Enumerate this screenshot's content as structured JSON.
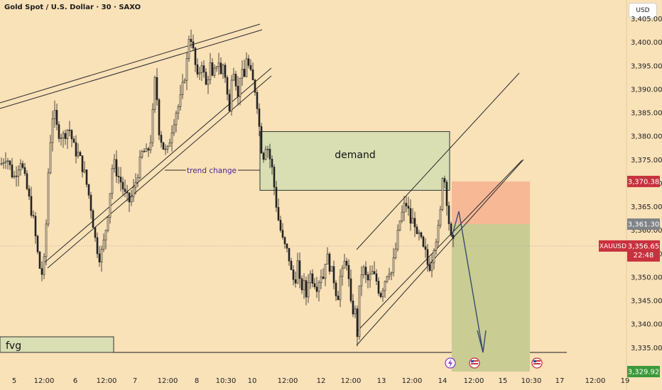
{
  "header": {
    "title": "Gold Spot / U.S. Dollar · 30 · SAXO",
    "currency": "USD"
  },
  "colors": {
    "background": "#f9e1b8",
    "candle": "#222222",
    "demand_zone": "#d9dfb3",
    "stop_zone": "#f7b896",
    "target_zone": "#c9cc93",
    "price_tag": "#c8313e",
    "target_tag": "#3a9a3a",
    "mid_tag": "#7f8386"
  },
  "chart_data": {
    "type": "candlestick",
    "symbol": "XAUUSD",
    "y_axis": {
      "range": [
        3326,
        3409
      ],
      "ticks": [
        3335,
        3340,
        3345,
        3350,
        3355,
        3360,
        3365,
        3370,
        3375,
        3380,
        3385,
        3390,
        3395,
        3400,
        3405
      ],
      "tick_labels": [
        "3,335.00",
        "3,340.00",
        "3,345.00",
        "3,350.00",
        "3,355.00",
        "3,360.00",
        "3,365.00",
        "3,370.00",
        "3,375.00",
        "3,380.00",
        "3,385.00",
        "3,390.00",
        "3,395.00",
        "3,400.00",
        "3,405.00"
      ]
    },
    "x_axis": {
      "tick_labels": [
        "5",
        "12:00",
        "6",
        "12:00",
        "7",
        "12:00",
        "8",
        "10:30",
        "10",
        "12:00",
        "12",
        "12:00",
        "13",
        "12:00",
        "14",
        "12:00",
        "15",
        "10:30",
        "17",
        "12:00",
        "19"
      ]
    },
    "annotations": {
      "demand_label": "demand",
      "trend_label": "trend change",
      "fvg_label": "fvg",
      "demand_zone": [
        3368.5,
        3381
      ],
      "stop_zone": [
        3361.3,
        3370.38
      ],
      "target_zone": [
        3329.92,
        3361.3
      ]
    },
    "price_tags": {
      "stop": "3,370.38",
      "entry": "3,361.30",
      "symbol": "XAUUSD",
      "current": "3,356.65",
      "countdown": "22:48",
      "target": "3,329.92",
      "current_value": 3356.65
    },
    "anchors": [
      [
        0,
        3374
      ],
      [
        8,
        3376
      ],
      [
        18,
        3371
      ],
      [
        28,
        3375
      ],
      [
        38,
        3368
      ],
      [
        46,
        3362
      ],
      [
        52,
        3355
      ],
      [
        57,
        3350
      ],
      [
        62,
        3354
      ],
      [
        68,
        3376
      ],
      [
        74,
        3386
      ],
      [
        80,
        3381
      ],
      [
        88,
        3380
      ],
      [
        96,
        3382
      ],
      [
        104,
        3377
      ],
      [
        110,
        3376
      ],
      [
        118,
        3372
      ],
      [
        126,
        3366
      ],
      [
        134,
        3357
      ],
      [
        140,
        3354
      ],
      [
        146,
        3358
      ],
      [
        152,
        3365
      ],
      [
        158,
        3375
      ],
      [
        164,
        3372
      ],
      [
        170,
        3370
      ],
      [
        176,
        3367
      ],
      [
        182,
        3366
      ],
      [
        188,
        3369
      ],
      [
        194,
        3373
      ],
      [
        200,
        3377
      ],
      [
        206,
        3376
      ],
      [
        212,
        3380
      ],
      [
        218,
        3394
      ],
      [
        222,
        3382
      ],
      [
        228,
        3378
      ],
      [
        234,
        3376
      ],
      [
        240,
        3381
      ],
      [
        246,
        3385
      ],
      [
        252,
        3387
      ],
      [
        258,
        3392
      ],
      [
        262,
        3396
      ],
      [
        266,
        3403
      ],
      [
        270,
        3399
      ],
      [
        274,
        3395
      ],
      [
        278,
        3391
      ],
      [
        282,
        3397
      ],
      [
        286,
        3393
      ],
      [
        290,
        3390
      ],
      [
        294,
        3396
      ],
      [
        298,
        3392
      ],
      [
        302,
        3394
      ],
      [
        306,
        3397
      ],
      [
        310,
        3393
      ],
      [
        314,
        3396
      ],
      [
        318,
        3390
      ],
      [
        322,
        3385
      ],
      [
        326,
        3396
      ],
      [
        330,
        3393
      ],
      [
        334,
        3388
      ],
      [
        338,
        3395
      ],
      [
        342,
        3391
      ],
      [
        346,
        3397
      ],
      [
        350,
        3394
      ],
      [
        354,
        3392
      ],
      [
        358,
        3390
      ],
      [
        362,
        3386
      ],
      [
        366,
        3378
      ],
      [
        370,
        3376
      ],
      [
        374,
        3379
      ],
      [
        378,
        3376
      ],
      [
        382,
        3373
      ],
      [
        386,
        3368
      ],
      [
        390,
        3363
      ],
      [
        394,
        3360
      ],
      [
        398,
        3357
      ],
      [
        402,
        3356
      ],
      [
        406,
        3354
      ],
      [
        410,
        3350
      ],
      [
        414,
        3349
      ],
      [
        418,
        3353
      ],
      [
        422,
        3347
      ],
      [
        426,
        3349
      ],
      [
        430,
        3346
      ],
      [
        434,
        3351
      ],
      [
        438,
        3350
      ],
      [
        442,
        3349
      ],
      [
        446,
        3348
      ],
      [
        450,
        3351
      ],
      [
        454,
        3350
      ],
      [
        458,
        3355
      ],
      [
        462,
        3353
      ],
      [
        466,
        3351
      ],
      [
        470,
        3349
      ],
      [
        474,
        3345
      ],
      [
        478,
        3350
      ],
      [
        482,
        3351
      ],
      [
        486,
        3355
      ],
      [
        490,
        3349
      ],
      [
        494,
        3342
      ],
      [
        498,
        3344
      ],
      [
        502,
        3338
      ],
      [
        506,
        3350
      ],
      [
        510,
        3352
      ],
      [
        514,
        3350
      ],
      [
        518,
        3349
      ],
      [
        522,
        3351
      ],
      [
        526,
        3350
      ],
      [
        530,
        3349
      ],
      [
        534,
        3346
      ],
      [
        538,
        3348
      ],
      [
        542,
        3350
      ],
      [
        546,
        3352
      ],
      [
        550,
        3351
      ],
      [
        554,
        3354
      ],
      [
        558,
        3358
      ],
      [
        562,
        3362
      ],
      [
        566,
        3364
      ],
      [
        570,
        3366
      ],
      [
        574,
        3364
      ],
      [
        578,
        3361
      ],
      [
        582,
        3363
      ],
      [
        586,
        3358
      ],
      [
        590,
        3359
      ],
      [
        594,
        3356
      ],
      [
        598,
        3355
      ],
      [
        602,
        3352
      ],
      [
        606,
        3353
      ],
      [
        610,
        3357
      ],
      [
        614,
        3359
      ],
      [
        618,
        3361
      ],
      [
        622,
        3372
      ],
      [
        626,
        3370
      ],
      [
        630,
        3363
      ],
      [
        634,
        3358
      ],
      [
        637,
        3357
      ]
    ]
  }
}
